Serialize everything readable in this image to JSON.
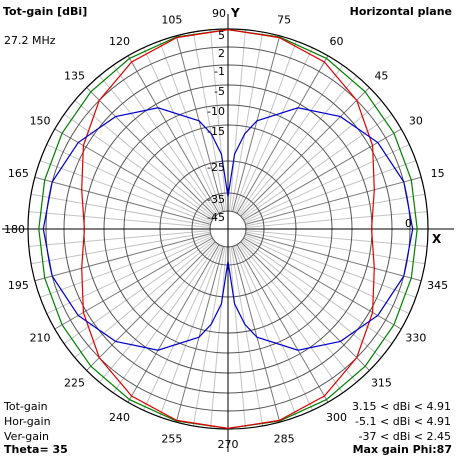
{
  "header": {
    "title": "Tot-gain [dBi]",
    "plane": "Horizontal plane",
    "frequency": "27.2 MHz",
    "theta": "Theta= 35",
    "max_gain": "Max gain Phi:87"
  },
  "axes": {
    "x_axis_label": "X",
    "y_axis_label": "Y"
  },
  "legend": [
    {
      "name": "Tot-gain",
      "range": "3.15 < dBi < 4.91",
      "color": "#008000"
    },
    {
      "name": "Hor-gain",
      "range": "-5.1 < dBi < 4.91",
      "color": "#e00000"
    },
    {
      "name": "Ver-gain",
      "range": "-37 < dBi < 2.45",
      "color": "#0000cc"
    }
  ],
  "chart_data": {
    "type": "polar",
    "angle_unit": "degrees",
    "angle_ticks": [
      0,
      15,
      30,
      45,
      60,
      75,
      90,
      105,
      120,
      135,
      150,
      165,
      180,
      195,
      210,
      225,
      240,
      255,
      270,
      285,
      300,
      315,
      330,
      345
    ],
    "angle_tick_labels": [
      "0",
      "15",
      "30",
      "45",
      "60",
      "75",
      "90",
      "105",
      "120",
      "135",
      "150",
      "165",
      "180",
      "195",
      "210",
      "225",
      "240",
      "255",
      "270",
      "285",
      "300",
      "315",
      "330",
      "345"
    ],
    "radial_ticks_dbi": [
      5,
      2,
      -1,
      -5,
      -10,
      -15,
      -25,
      -35,
      -45
    ],
    "radial_tick_labels": [
      "5",
      "2",
      "-1",
      "-5",
      "-10",
      "-15",
      "-25",
      "-35",
      "-45"
    ],
    "r_range_dbi": [
      -45,
      5
    ],
    "series": [
      {
        "name": "Tot-gain",
        "phi": [
          0,
          15,
          30,
          45,
          60,
          75,
          90,
          105,
          120,
          135,
          150,
          165,
          180,
          195,
          210,
          225,
          240,
          255,
          270,
          285,
          300,
          315,
          330,
          345
        ],
        "gain_dbi": [
          3.2,
          3.3,
          3.6,
          4.0,
          4.5,
          4.8,
          4.9,
          4.8,
          4.5,
          4.0,
          3.6,
          3.3,
          3.2,
          3.3,
          3.6,
          4.0,
          4.5,
          4.8,
          4.9,
          4.8,
          4.5,
          4.0,
          3.6,
          3.3
        ]
      },
      {
        "name": "Hor-gain",
        "phi": [
          0,
          15,
          30,
          45,
          60,
          75,
          90,
          105,
          120,
          135,
          150,
          165,
          180,
          195,
          210,
          225,
          240,
          255,
          270,
          285,
          300,
          315,
          330,
          345
        ],
        "gain_dbi": [
          -5.1,
          -3.5,
          -0.5,
          2.0,
          3.8,
          4.7,
          4.9,
          4.7,
          3.8,
          2.0,
          -0.5,
          -3.5,
          -5.1,
          -3.5,
          -0.5,
          2.0,
          3.8,
          4.7,
          4.9,
          4.7,
          3.8,
          2.0,
          -0.5,
          -3.5
        ]
      },
      {
        "name": "Ver-gain",
        "phi": [
          0,
          15,
          30,
          45,
          60,
          75,
          80,
          85,
          90,
          95,
          100,
          105,
          120,
          135,
          150,
          165,
          180,
          195,
          210,
          225,
          240,
          255,
          260,
          265,
          270,
          275,
          280,
          285,
          300,
          315,
          330,
          345
        ],
        "gain_dbi": [
          2.45,
          2.0,
          0.5,
          -2.0,
          -6.0,
          -13.0,
          -17.0,
          -23.0,
          -37.0,
          -23.0,
          -17.0,
          -13.0,
          -6.0,
          -2.0,
          0.5,
          2.0,
          2.45,
          2.0,
          0.5,
          -2.0,
          -6.0,
          -13.0,
          -17.0,
          -23.0,
          -37.0,
          -23.0,
          -17.0,
          -13.0,
          -6.0,
          -2.0,
          0.5,
          2.0
        ]
      }
    ],
    "grid": true
  }
}
